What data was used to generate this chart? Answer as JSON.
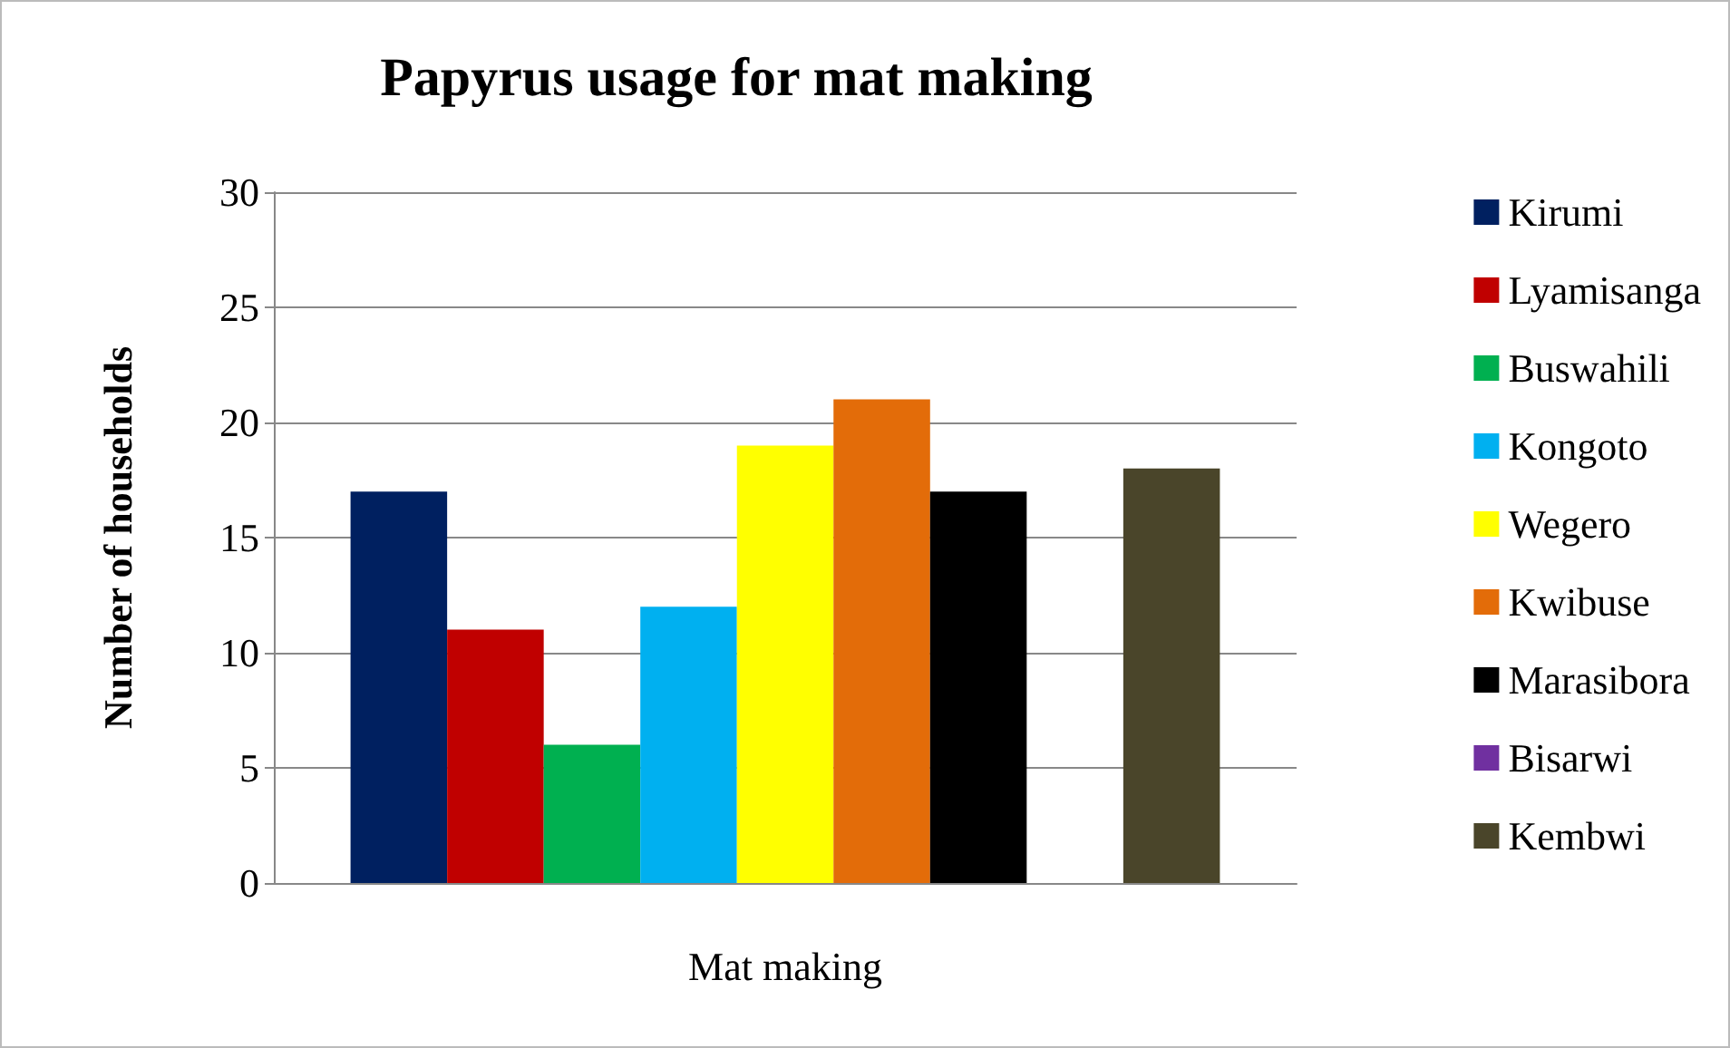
{
  "chart_data": {
    "type": "bar",
    "title": "Papyrus usage for mat making",
    "ylabel": "Number of households",
    "categories": [
      "Mat making"
    ],
    "series": [
      {
        "name": "Kirumi",
        "color": "#002060",
        "values": [
          17
        ]
      },
      {
        "name": "Lyamisanga",
        "color": "#c00000",
        "values": [
          11
        ]
      },
      {
        "name": "Buswahili",
        "color": "#00b050",
        "values": [
          6
        ]
      },
      {
        "name": "Kongoto",
        "color": "#00b0f0",
        "values": [
          12
        ]
      },
      {
        "name": "Wegero",
        "color": "#ffff00",
        "values": [
          19
        ]
      },
      {
        "name": "Kwibuse",
        "color": "#e36c09",
        "values": [
          21
        ]
      },
      {
        "name": "Marasibora",
        "color": "#000000",
        "values": [
          17
        ]
      },
      {
        "name": "Bisarwi",
        "color": "#7030a0",
        "values": [
          0
        ]
      },
      {
        "name": "Kembwi",
        "color": "#4a452a",
        "values": [
          18
        ]
      }
    ],
    "ylim": [
      0,
      30
    ],
    "yticks": [
      0,
      5,
      10,
      15,
      20,
      25,
      30
    ],
    "grid": "y",
    "legend": "right"
  }
}
